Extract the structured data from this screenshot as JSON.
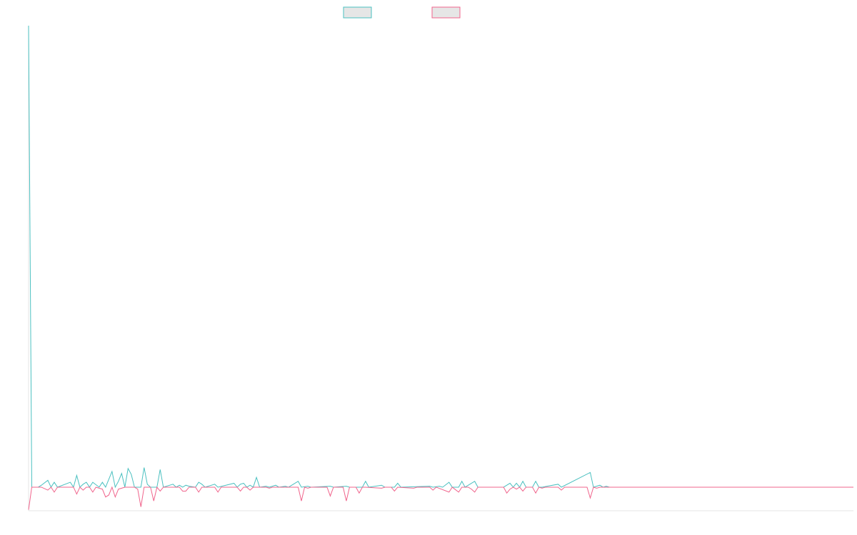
{
  "chart_data": {
    "type": "line",
    "title": "",
    "xlabel": "",
    "ylabel": "",
    "grid": false,
    "legend_position": "top-center",
    "ylim": [
      -2.4,
      47
    ],
    "x_count": 258,
    "series": [
      {
        "color": "#4bc0c0",
        "fill": "#e6e6e6",
        "points": [
          [
            0,
            47
          ],
          [
            1,
            0
          ],
          [
            3,
            0
          ],
          [
            4,
            0.2
          ],
          [
            6,
            0.7
          ],
          [
            7,
            0
          ],
          [
            8,
            0.5
          ],
          [
            9,
            0
          ],
          [
            13,
            0.5
          ],
          [
            14,
            0
          ],
          [
            15,
            1.2
          ],
          [
            16,
            0
          ],
          [
            17,
            0.3
          ],
          [
            18,
            0.5
          ],
          [
            19,
            0
          ],
          [
            20,
            0.5
          ],
          [
            22,
            0
          ],
          [
            23,
            0.5
          ],
          [
            24,
            0
          ],
          [
            26,
            1.6
          ],
          [
            27,
            0
          ],
          [
            28,
            0.6
          ],
          [
            29,
            1.4
          ],
          [
            30,
            0
          ],
          [
            31,
            1.9
          ],
          [
            32,
            1.3
          ],
          [
            33,
            0
          ],
          [
            35,
            0
          ],
          [
            36,
            2.0
          ],
          [
            37,
            0.3
          ],
          [
            38,
            0
          ],
          [
            40,
            0
          ],
          [
            41,
            1.8
          ],
          [
            42,
            0
          ],
          [
            45,
            0.3
          ],
          [
            46,
            0
          ],
          [
            47,
            0.2
          ],
          [
            48,
            0
          ],
          [
            49,
            0.2
          ],
          [
            50,
            0.1
          ],
          [
            52,
            0
          ],
          [
            53,
            0.5
          ],
          [
            54,
            0.3
          ],
          [
            55,
            0
          ],
          [
            58,
            0.3
          ],
          [
            59,
            0
          ],
          [
            64,
            0.4
          ],
          [
            65,
            0
          ],
          [
            66,
            0.3
          ],
          [
            67,
            0.4
          ],
          [
            68,
            0
          ],
          [
            69,
            0.2
          ],
          [
            70,
            0
          ],
          [
            71,
            1.0
          ],
          [
            72,
            0
          ],
          [
            74,
            0.1
          ],
          [
            75,
            0
          ],
          [
            77,
            0.2
          ],
          [
            78,
            0
          ],
          [
            80,
            0.1
          ],
          [
            81,
            0
          ],
          [
            84,
            0.6
          ],
          [
            85,
            0
          ],
          [
            87,
            0.1
          ],
          [
            88,
            0
          ],
          [
            94,
            0.1
          ],
          [
            95,
            0
          ],
          [
            99,
            0.1
          ],
          [
            100,
            0
          ],
          [
            104,
            0
          ],
          [
            105,
            0.6
          ],
          [
            106,
            0
          ],
          [
            110,
            0.2
          ],
          [
            111,
            0
          ],
          [
            114,
            0
          ],
          [
            115,
            0.4
          ],
          [
            116,
            0
          ],
          [
            125,
            0.1
          ],
          [
            126,
            0
          ],
          [
            128,
            0.1
          ],
          [
            129,
            0
          ],
          [
            131,
            0.5
          ],
          [
            132,
            0
          ],
          [
            134,
            0
          ],
          [
            135,
            0.6
          ],
          [
            136,
            0
          ],
          [
            139,
            0.6
          ],
          [
            140,
            0
          ],
          [
            148,
            0
          ],
          [
            149,
            0.2
          ],
          [
            150,
            0.4
          ],
          [
            151,
            0
          ],
          [
            152,
            0.4
          ],
          [
            153,
            0
          ],
          [
            154,
            0.6
          ],
          [
            155,
            0
          ],
          [
            157,
            0
          ],
          [
            158,
            0.6
          ],
          [
            159,
            0
          ],
          [
            160,
            0
          ],
          [
            165,
            0.3
          ],
          [
            166,
            0
          ],
          [
            175,
            1.5
          ],
          [
            176,
            0
          ],
          [
            178,
            0.2
          ],
          [
            179,
            0
          ],
          [
            180,
            0.1
          ],
          [
            181,
            0
          ],
          [
            257,
            0
          ]
        ]
      },
      {
        "color": "#f0648c",
        "fill": "#e6e6e6",
        "points": [
          [
            0,
            -2.3
          ],
          [
            1,
            0
          ],
          [
            3,
            0
          ],
          [
            4,
            0
          ],
          [
            6,
            -0.3
          ],
          [
            7,
            0
          ],
          [
            8,
            -0.5
          ],
          [
            9,
            0
          ],
          [
            13,
            0
          ],
          [
            14,
            0
          ],
          [
            15,
            -0.7
          ],
          [
            16,
            0
          ],
          [
            17,
            -0.3
          ],
          [
            18,
            0
          ],
          [
            19,
            0
          ],
          [
            20,
            -0.5
          ],
          [
            21,
            0
          ],
          [
            22,
            -0.1
          ],
          [
            23,
            -0.2
          ],
          [
            24,
            -1.0
          ],
          [
            25,
            -0.8
          ],
          [
            26,
            0
          ],
          [
            27,
            -1.0
          ],
          [
            28,
            -0.2
          ],
          [
            29,
            -0.1
          ],
          [
            30,
            0
          ],
          [
            33,
            0
          ],
          [
            34,
            -0.2
          ],
          [
            35,
            -2.0
          ],
          [
            36,
            0
          ],
          [
            38,
            0
          ],
          [
            39,
            -1.4
          ],
          [
            40,
            0
          ],
          [
            41,
            -0.4
          ],
          [
            42,
            0
          ],
          [
            47,
            0
          ],
          [
            48,
            -0.4
          ],
          [
            49,
            -0.4
          ],
          [
            50,
            0
          ],
          [
            52,
            0
          ],
          [
            53,
            -0.5
          ],
          [
            54,
            0
          ],
          [
            58,
            0
          ],
          [
            59,
            -0.5
          ],
          [
            60,
            0
          ],
          [
            65,
            0
          ],
          [
            66,
            -0.4
          ],
          [
            67,
            0
          ],
          [
            68,
            0
          ],
          [
            69,
            -0.3
          ],
          [
            70,
            0
          ],
          [
            71,
            0
          ],
          [
            72,
            0
          ],
          [
            74,
            0
          ],
          [
            75,
            -0.1
          ],
          [
            76,
            0
          ],
          [
            84,
            0
          ],
          [
            85,
            -1.4
          ],
          [
            86,
            0
          ],
          [
            87,
            -0.1
          ],
          [
            88,
            0
          ],
          [
            93,
            0
          ],
          [
            94,
            -0.9
          ],
          [
            95,
            0
          ],
          [
            98,
            0
          ],
          [
            99,
            -1.4
          ],
          [
            100,
            0
          ],
          [
            102,
            0
          ],
          [
            103,
            -0.6
          ],
          [
            104,
            0
          ],
          [
            105,
            0
          ],
          [
            110,
            -0.1
          ],
          [
            111,
            0
          ],
          [
            113,
            0
          ],
          [
            114,
            -0.4
          ],
          [
            115,
            0
          ],
          [
            120,
            -0.1
          ],
          [
            121,
            0
          ],
          [
            125,
            0
          ],
          [
            126,
            -0.3
          ],
          [
            127,
            0
          ],
          [
            131,
            -0.5
          ],
          [
            132,
            0
          ],
          [
            134,
            -0.5
          ],
          [
            135,
            0
          ],
          [
            137,
            0
          ],
          [
            138,
            -0.2
          ],
          [
            139,
            -0.5
          ],
          [
            140,
            0
          ],
          [
            148,
            0
          ],
          [
            149,
            -0.6
          ],
          [
            150,
            -0.2
          ],
          [
            151,
            0
          ],
          [
            152,
            -0.2
          ],
          [
            153,
            0
          ],
          [
            154,
            -0.4
          ],
          [
            155,
            0
          ],
          [
            157,
            0
          ],
          [
            158,
            -0.6
          ],
          [
            159,
            0
          ],
          [
            160,
            -0.1
          ],
          [
            161,
            0
          ],
          [
            165,
            0
          ],
          [
            166,
            -0.3
          ],
          [
            167,
            0
          ],
          [
            174,
            0
          ],
          [
            175,
            -1.1
          ],
          [
            176,
            0
          ],
          [
            177,
            -0.1
          ],
          [
            178,
            0
          ],
          [
            257,
            0
          ]
        ]
      }
    ]
  }
}
